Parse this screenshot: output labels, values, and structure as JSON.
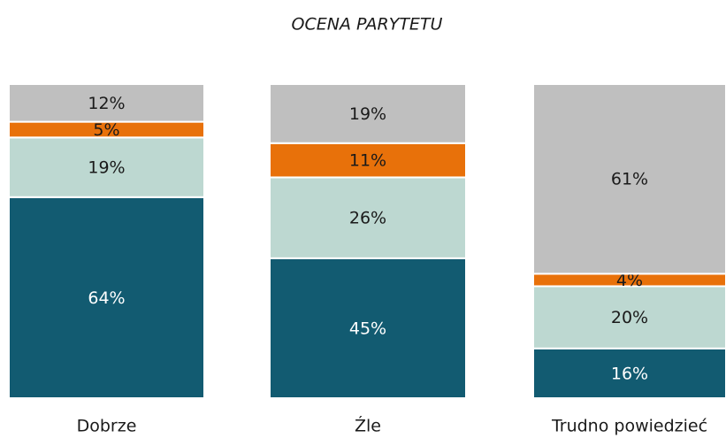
{
  "chart_data": {
    "type": "stacked-bar",
    "title": "OCENA PARYTETU",
    "categories": [
      "Dobrze",
      "Źle",
      "Trudno powiedzieć"
    ],
    "series": [
      {
        "color": "#125b71",
        "values": [
          64,
          45,
          16
        ],
        "value_labels": [
          "64%",
          "45%",
          "16%"
        ]
      },
      {
        "color": "#bdd8d1",
        "values": [
          19,
          26,
          20
        ],
        "value_labels": [
          "19%",
          "26%",
          "20%"
        ]
      },
      {
        "color": "#e8710a",
        "values": [
          5,
          11,
          4
        ],
        "value_labels": [
          "5%",
          "11%",
          "4%"
        ]
      },
      {
        "color": "#bfbfbf",
        "values": [
          12,
          19,
          61
        ],
        "value_labels": [
          "12%",
          "19%",
          "61%"
        ]
      }
    ]
  }
}
